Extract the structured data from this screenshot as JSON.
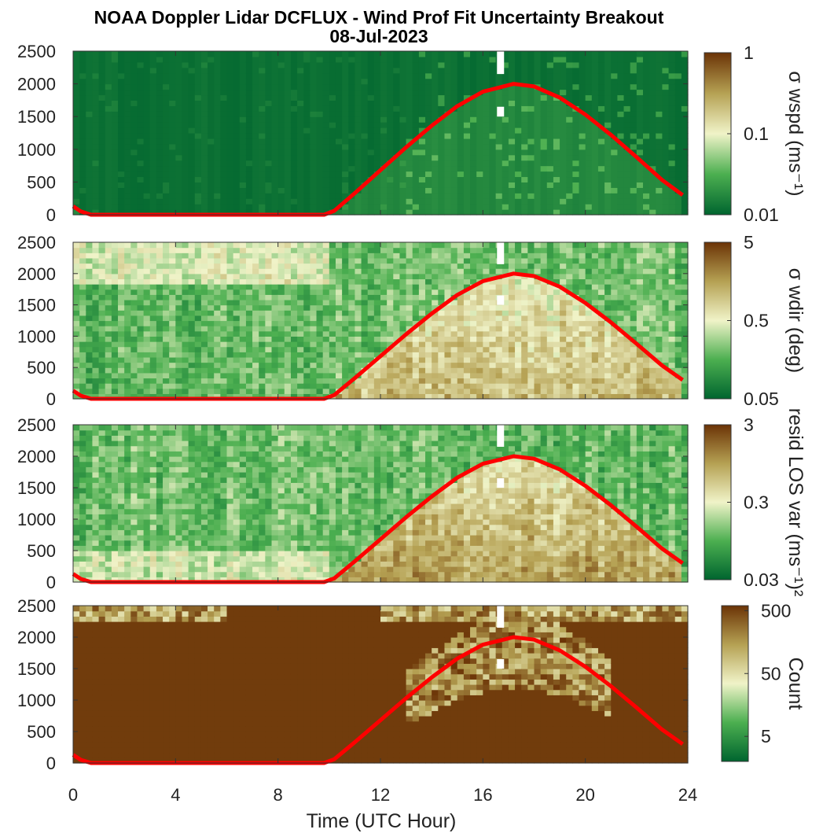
{
  "figure": {
    "title_line1": "NOAA Doppler Lidar DCFLUX - Wind Prof Fit Uncertainty Breakout",
    "title_line2": "08-Jul-2023",
    "xlabel": "Time (UTC Hour)"
  },
  "colors": {
    "dark_green": "#00652f",
    "light_green": "#4caf50",
    "pale": "#f0f3c8",
    "tan": "#b5a153",
    "dark_brown": "#6b3306",
    "curve": "#ff0000"
  },
  "chart_data": [
    {
      "type": "heatmap",
      "panel": "sigma-wspd",
      "colorbar_label": "σ wspd (ms⁻¹)",
      "colorbar_scale": "log",
      "colorbar_range": [
        0.01,
        1
      ],
      "colorbar_ticks": [
        "1",
        "0.1",
        "0.01"
      ],
      "x_range": [
        0,
        24
      ],
      "y_range": [
        0,
        2500
      ],
      "y_ticks": [
        "0",
        "500",
        "1000",
        "1500",
        "2000",
        "2500"
      ]
    },
    {
      "type": "heatmap",
      "panel": "sigma-wdir",
      "colorbar_label": "σ wdir (deg)",
      "colorbar_scale": "log",
      "colorbar_range": [
        0.05,
        5
      ],
      "colorbar_ticks": [
        "5",
        "0.5",
        "0.05"
      ],
      "x_range": [
        0,
        24
      ],
      "y_range": [
        0,
        2500
      ],
      "y_ticks": [
        "0",
        "500",
        "1000",
        "1500",
        "2000",
        "2500"
      ]
    },
    {
      "type": "heatmap",
      "panel": "resid-los-var",
      "colorbar_label": "resid LOS var (ms⁻¹)²",
      "colorbar_scale": "log",
      "colorbar_range": [
        0.03,
        3
      ],
      "colorbar_ticks": [
        "3",
        "0.3",
        "0.03"
      ],
      "x_range": [
        0,
        24
      ],
      "y_range": [
        0,
        2500
      ],
      "y_ticks": [
        "0",
        "500",
        "1000",
        "1500",
        "2000",
        "2500"
      ]
    },
    {
      "type": "heatmap",
      "panel": "count",
      "colorbar_label": "Count",
      "colorbar_scale": "log",
      "colorbar_range": [
        2,
        600
      ],
      "colorbar_ticks": [
        "500",
        "50",
        "5"
      ],
      "x_range": [
        0,
        24
      ],
      "y_range": [
        0,
        2500
      ],
      "y_ticks": [
        "0",
        "500",
        "1000",
        "1500",
        "2000",
        "2500"
      ],
      "x_ticks": [
        "0",
        "4",
        "8",
        "12",
        "16",
        "20",
        "24"
      ]
    }
  ],
  "overlay_curve": {
    "name": "red line",
    "points": [
      [
        0,
        130
      ],
      [
        0.3,
        50
      ],
      [
        0.7,
        0
      ],
      [
        9.8,
        0
      ],
      [
        10.2,
        60
      ],
      [
        11,
        330
      ],
      [
        12,
        680
      ],
      [
        13,
        1030
      ],
      [
        14,
        1360
      ],
      [
        15,
        1660
      ],
      [
        16,
        1880
      ],
      [
        17.2,
        2000
      ],
      [
        18,
        1960
      ],
      [
        19,
        1790
      ],
      [
        20,
        1530
      ],
      [
        21,
        1220
      ],
      [
        22,
        880
      ],
      [
        23,
        530
      ],
      [
        23.8,
        300
      ]
    ]
  }
}
